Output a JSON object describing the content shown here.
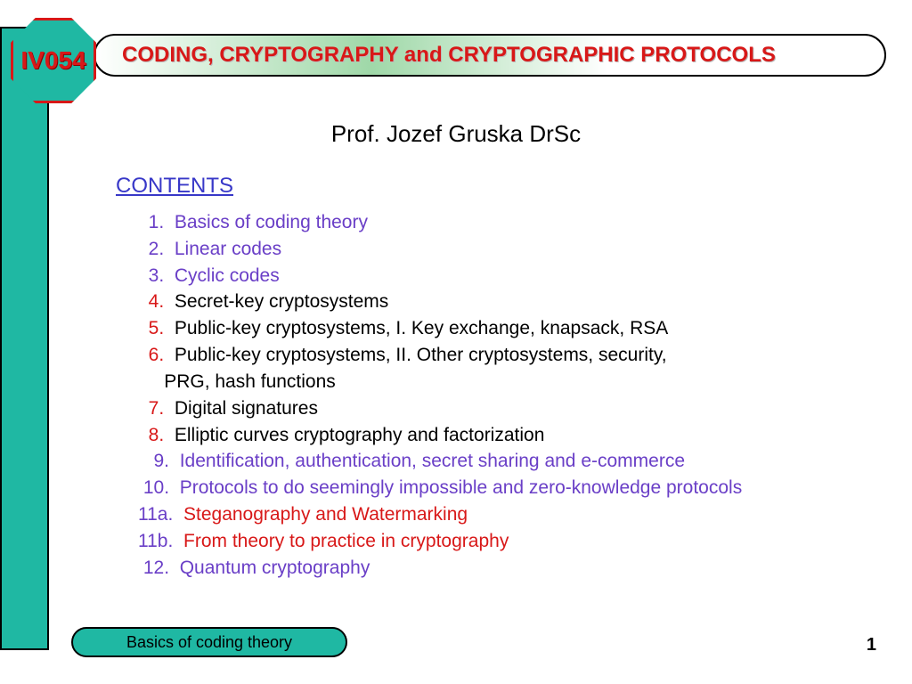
{
  "badge": {
    "code": "IV054"
  },
  "title": "CODING, CRYPTOGRAPHY and CRYPTOGRAPHIC PROTOCOLS",
  "author": "Prof. Jozef Gruska DrSc",
  "contents_label": "CONTENTS",
  "items": [
    {
      "num": "1.",
      "num_color": "purple",
      "text": "Basics of coding theory",
      "text_color": "purple",
      "indent": 2
    },
    {
      "num": "2.",
      "num_color": "purple",
      "text": "Linear codes",
      "text_color": "purple",
      "indent": 2
    },
    {
      "num": "3.",
      "num_color": "purple",
      "text": "Cyclic codes",
      "text_color": "purple",
      "indent": 2
    },
    {
      "num": "4.",
      "num_color": "red",
      "text": "Secret-key cryptosystems",
      "text_color": "black",
      "indent": 2
    },
    {
      "num": "5.",
      "num_color": "red",
      "text": "Public-key cryptosystems, I. Key exchange, knapsack, RSA",
      "text_color": "black",
      "indent": 2
    },
    {
      "num": "6.",
      "num_color": "red",
      "text": "Public-key cryptosystems, II. Other cryptosystems, security,",
      "text_color": "black",
      "indent": 2
    },
    {
      "num": "",
      "num_color": "red",
      "text": "PRG, hash functions",
      "text_color": "black",
      "indent": 5
    },
    {
      "num": "7.",
      "num_color": "red",
      "text": "Digital signatures",
      "text_color": "black",
      "indent": 2
    },
    {
      "num": "8.",
      "num_color": "red",
      "text": "Elliptic curves cryptography and factorization",
      "text_color": "black",
      "indent": 2
    },
    {
      "num": "9.",
      "num_color": "purple",
      "text": "Identification, authentication, secret sharing and e-commerce",
      "text_color": "purple",
      "indent": 3
    },
    {
      "num": "10.",
      "num_color": "purple",
      "text": "Protocols to do seemingly impossible and zero-knowledge protocols",
      "text_color": "purple",
      "indent": 1
    },
    {
      "num": "11a.",
      "num_color": "purple",
      "text": "Steganography and Watermarking",
      "text_color": "red",
      "indent": 0
    },
    {
      "num": "11b.",
      "num_color": "purple",
      "text": "From theory to practice in cryptography",
      "text_color": "red",
      "indent": 0
    },
    {
      "num": "12.",
      "num_color": "purple",
      "text": "Quantum cryptography",
      "text_color": "purple",
      "indent": 1
    }
  ],
  "footer": {
    "label": "Basics of coding theory",
    "page": "1"
  },
  "colors": {
    "teal": "#1fb8a3",
    "red": "#d81818",
    "purple": "#6a3fc7",
    "blue": "#3838c8"
  }
}
